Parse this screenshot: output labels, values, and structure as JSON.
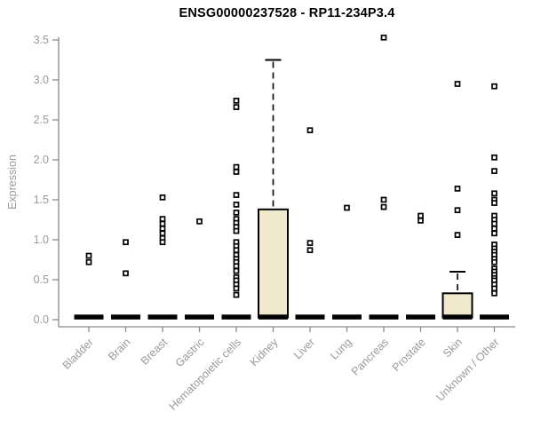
{
  "chart_data": {
    "type": "boxplot",
    "title": "ENSG00000237528 - RP11-234P3.4",
    "ylabel": "Expression",
    "xlabel": "",
    "ylim": [
      0.0,
      3.5
    ],
    "yticks": [
      0.0,
      0.5,
      1.0,
      1.5,
      2.0,
      2.5,
      3.0,
      3.5
    ],
    "grid": "off",
    "legend": "none",
    "categories": [
      "Bladder",
      "Brain",
      "Breast",
      "Gastric",
      "Hematopoietic cells",
      "Kidney",
      "Liver",
      "Lung",
      "Pancreas",
      "Prostate",
      "Skin",
      "Unknown / Other"
    ],
    "colors": {
      "box_fill": "#f0e9ce",
      "box_stroke": "#000000",
      "median": "#000000",
      "point_stroke": "#000000",
      "point_fill": "#ffffff",
      "axis": "#8a8a8a",
      "tick_label": "#9a9a9a",
      "title": "#000000"
    },
    "groups": [
      {
        "category": "Bladder",
        "median": 0,
        "q1": 0,
        "q3": 0,
        "whisker_high": 0,
        "points": [
          0.8,
          0.72
        ]
      },
      {
        "category": "Brain",
        "median": 0,
        "q1": 0,
        "q3": 0,
        "whisker_high": 0,
        "points": [
          0.97,
          0.58
        ]
      },
      {
        "category": "Breast",
        "median": 0,
        "q1": 0,
        "q3": 0,
        "whisker_high": 0,
        "points": [
          1.53,
          1.26,
          1.2,
          1.14,
          1.08,
          1.02,
          0.97
        ]
      },
      {
        "category": "Gastric",
        "median": 0,
        "q1": 0,
        "q3": 0,
        "whisker_high": 0,
        "points": [
          1.23
        ]
      },
      {
        "category": "Hematopoietic cells",
        "median": 0,
        "q1": 0,
        "q3": 0,
        "whisker_high": 0,
        "points": [
          2.74,
          2.66,
          1.91,
          1.85,
          1.56,
          1.44,
          1.34,
          1.26,
          1.21,
          1.16,
          1.11,
          0.97,
          0.92,
          0.87,
          0.81,
          0.76,
          0.72,
          0.67,
          0.61,
          0.53,
          0.49,
          0.44,
          0.39,
          0.31
        ]
      },
      {
        "category": "Kidney",
        "median": 0,
        "q1": 0,
        "q3": 1.38,
        "whisker_high": 3.25,
        "points": []
      },
      {
        "category": "Liver",
        "median": 0,
        "q1": 0,
        "q3": 0,
        "whisker_high": 0,
        "points": [
          2.37,
          0.96,
          0.87
        ]
      },
      {
        "category": "Lung",
        "median": 0,
        "q1": 0,
        "q3": 0,
        "whisker_high": 0,
        "points": [
          1.4
        ]
      },
      {
        "category": "Pancreas",
        "median": 0,
        "q1": 0,
        "q3": 0,
        "whisker_high": 0,
        "points": [
          3.53,
          1.5,
          1.41
        ]
      },
      {
        "category": "Prostate",
        "median": 0,
        "q1": 0,
        "q3": 0,
        "whisker_high": 0,
        "points": [
          1.3,
          1.24
        ]
      },
      {
        "category": "Skin",
        "median": 0,
        "q1": 0,
        "q3": 0.33,
        "whisker_high": 0.6,
        "points": [
          2.95,
          1.64,
          1.37,
          1.06
        ]
      },
      {
        "category": "Unknown / Other",
        "median": 0,
        "q1": 0,
        "q3": 0,
        "whisker_high": 0,
        "points": [
          2.92,
          2.03,
          1.86,
          1.58,
          1.5,
          1.46,
          1.3,
          1.25,
          1.2,
          1.14,
          1.08,
          0.94,
          0.89,
          0.85,
          0.81,
          0.76,
          0.72,
          0.64,
          0.6,
          0.56,
          0.52,
          0.49,
          0.44,
          0.39,
          0.33
        ]
      }
    ]
  }
}
